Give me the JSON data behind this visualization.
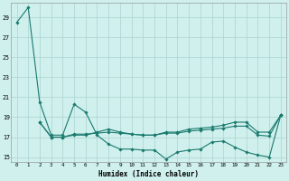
{
  "xlabel": "Humidex (Indice chaleur)",
  "x": [
    0,
    1,
    2,
    3,
    4,
    5,
    6,
    7,
    8,
    9,
    10,
    11,
    12,
    13,
    14,
    15,
    16,
    17,
    18,
    19,
    20,
    21,
    22,
    23
  ],
  "s1_y": [
    28.5,
    30.0,
    20.5,
    17.2,
    17.2,
    20.3,
    19.5,
    17.2,
    16.3,
    15.8,
    15.8,
    15.7,
    15.7,
    14.8,
    15.5,
    15.7,
    15.8,
    16.5,
    16.6,
    16.0,
    15.5,
    15.2,
    15.0,
    19.2
  ],
  "s2_y": [
    null,
    null,
    18.5,
    17.0,
    17.0,
    17.2,
    17.2,
    17.5,
    17.8,
    17.5,
    17.3,
    17.2,
    17.2,
    17.5,
    17.5,
    17.8,
    17.9,
    18.0,
    18.2,
    18.5,
    18.5,
    17.5,
    17.5,
    19.2
  ],
  "s3_y": [
    null,
    null,
    18.5,
    17.0,
    17.0,
    17.3,
    17.3,
    17.4,
    17.5,
    17.4,
    17.3,
    17.2,
    17.2,
    17.4,
    17.4,
    17.6,
    17.7,
    17.8,
    17.9,
    18.1,
    18.1,
    17.2,
    17.1,
    19.2
  ],
  "line_color": "#1a7a6e",
  "bg_color": "#cff0ed",
  "grid_color": "#aad4d0",
  "yticks": [
    15,
    17,
    19,
    21,
    23,
    25,
    27,
    29
  ],
  "ylim": [
    14.5,
    30.5
  ],
  "xlim": [
    -0.5,
    23.5
  ],
  "figsize": [
    3.2,
    2.0
  ],
  "dpi": 100
}
